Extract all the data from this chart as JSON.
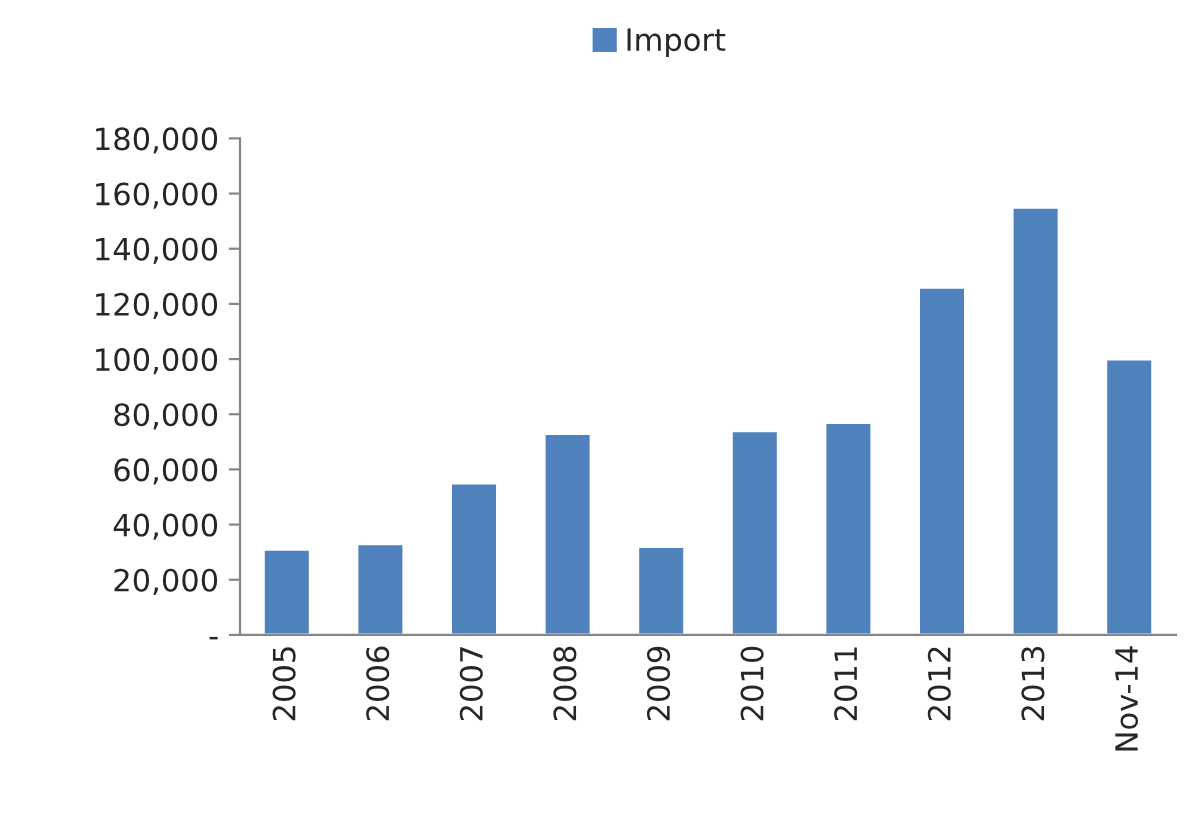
{
  "chart_data": {
    "type": "bar",
    "categories": [
      "2005",
      "2006",
      "2007",
      "2008",
      "2009",
      "2010",
      "2011",
      "2012",
      "2013",
      "Nov-14"
    ],
    "series": [
      {
        "name": "Import",
        "color": "#4f81bd",
        "values": [
          31000,
          33000,
          55000,
          73000,
          32000,
          74000,
          77000,
          126000,
          155000,
          100000
        ]
      }
    ],
    "ylim": [
      0,
      180000
    ],
    "yticks": [
      {
        "value": 0,
        "label": "-"
      },
      {
        "value": 20000,
        "label": "20,000"
      },
      {
        "value": 40000,
        "label": "40,000"
      },
      {
        "value": 60000,
        "label": "60,000"
      },
      {
        "value": 80000,
        "label": "80,000"
      },
      {
        "value": 100000,
        "label": "100,000"
      },
      {
        "value": 120000,
        "label": "120,000"
      },
      {
        "value": 140000,
        "label": "140,000"
      },
      {
        "value": 160000,
        "label": "160,000"
      },
      {
        "value": 180000,
        "label": "180,000"
      }
    ],
    "grid": false,
    "legend": "top"
  }
}
